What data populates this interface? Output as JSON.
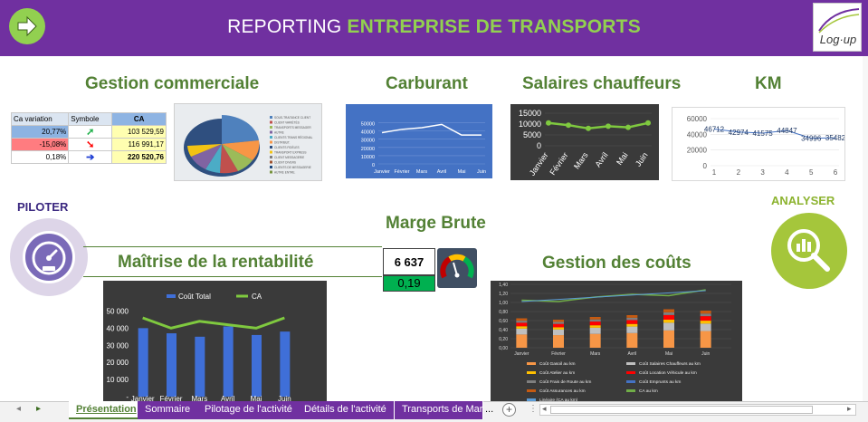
{
  "header": {
    "title_part1": "REPORTING ",
    "title_part2": "ENTREPRISE  DE TRANSPORTS",
    "logo_text": "Log·up",
    "icons": {
      "arrow": "right-arrow-icon"
    }
  },
  "sections": {
    "gestion_commerciale": "Gestion commerciale",
    "carburant": "Carburant",
    "salaires": "Salaires chauffeurs",
    "km": "KM",
    "piloter": "PILOTER",
    "analyser": "ANALYSER",
    "marge_brute": "Marge Brute",
    "maitrise": "Maîtrise de la rentabilité",
    "gestion_couts": "Gestion des coûts"
  },
  "ca_table": {
    "headers": [
      "Ca variation",
      "Symbole",
      "CA"
    ],
    "rows": [
      {
        "pct": "20,77%",
        "symbol": "➚",
        "value": "103 529,59"
      },
      {
        "pct": "-15,08%",
        "symbol": "➘",
        "value": "116 991,17"
      },
      {
        "pct": "0,18%",
        "symbol": "➔",
        "value": "220 520,76"
      }
    ]
  },
  "marge": {
    "value": "6 637",
    "ratio": "0,19"
  },
  "months": [
    "Janvier",
    "Février",
    "Mars",
    "Avril",
    "Mai",
    "Juin"
  ],
  "chart_data": [
    {
      "type": "line",
      "name": "carburant",
      "categories": [
        "Janvier",
        "Février",
        "Mars",
        "Avril",
        "Mai",
        "Juin"
      ],
      "values": [
        38000,
        42000,
        44000,
        48000,
        35000,
        35000
      ],
      "yticks": [
        "50000",
        "40000",
        "30000",
        "20000",
        "10000",
        "0"
      ],
      "ylim": [
        0,
        55000
      ]
    },
    {
      "type": "line",
      "name": "salaires",
      "categories": [
        "Janvier",
        "Février",
        "Mars",
        "Avril",
        "Mai",
        "Juin"
      ],
      "values": [
        10500,
        9500,
        8000,
        9000,
        8500,
        10500
      ],
      "yticks": [
        "15000",
        "10000",
        "5000",
        "0"
      ],
      "ylim": [
        0,
        15000
      ]
    },
    {
      "type": "line",
      "name": "km",
      "categories": [
        "1",
        "2",
        "3",
        "4",
        "5",
        "6"
      ],
      "values": [
        46712,
        42974,
        41575,
        44847,
        34996,
        35482
      ],
      "labels": [
        "46712",
        "42974",
        "41575",
        "44847",
        "34996",
        "35482"
      ],
      "yticks": [
        "60000",
        "40000",
        "20000",
        "0"
      ],
      "ylim": [
        0,
        60000
      ]
    },
    {
      "type": "bar",
      "name": "rentabilite",
      "categories": [
        "Janvier",
        "Février",
        "Mars",
        "Avril",
        "Mai",
        "Juin"
      ],
      "series": [
        {
          "name": "Coût Total",
          "values": [
            40000,
            37000,
            35000,
            41000,
            36000,
            38000
          ]
        },
        {
          "name": "CA",
          "values": [
            46000,
            40000,
            44000,
            42000,
            40000,
            46000
          ]
        }
      ],
      "yticks": [
        "50 000",
        "40 000",
        "30 000",
        "20 000",
        "10 000",
        "-"
      ],
      "ylim": [
        0,
        55000
      ]
    },
    {
      "type": "bar",
      "name": "gestion_couts",
      "categories": [
        "Janvier",
        "Février",
        "Mars",
        "Avril",
        "Mai",
        "Juin"
      ],
      "totals": [
        0.65,
        0.62,
        0.68,
        0.72,
        0.85,
        0.82
      ],
      "ca_line": [
        1.05,
        1.02,
        1.12,
        1.18,
        1.15,
        1.28
      ],
      "yticks": [
        "1,40",
        "1,20",
        "1,00",
        "0,80",
        "0,60",
        "0,40",
        "0,20",
        "0,00"
      ],
      "ylim": [
        0,
        1.4
      ],
      "legend": [
        "Coût Gasoil au km",
        "Coût Salaires Chauffeurs au km",
        "Coût Atelier au km",
        "Coût Location Véhicule au km",
        "Coût Frais de Route au km",
        "Coût Emprunts au km",
        "Coût Assurances au km",
        "CA au km",
        "Linéaire (CA au km)"
      ]
    }
  ],
  "tabs": [
    "Présentation",
    "Sommaire",
    "Pilotage de l'activité",
    "Détails de l'activité",
    "Transports de Marc"
  ],
  "tabbar": {
    "more": "...",
    "add": "+",
    "prev": "◂",
    "next": "▸"
  },
  "pie_legend": [
    "SOUS-TRAITANCE CLIENT",
    "CLIENT VARIÉTÉS",
    "TRANSPORTS MESSAGER",
    "AUTRE",
    "CLIENTS TRANS RÉGIONAL",
    "DISTRIBUT.",
    "CLIENTS FIDÈLES",
    "TRANSPORT EXPRESS",
    "CLIENT MESSAGERIE",
    "CLIENT DIVERS",
    "CLIENTS DE MESSAGERIE",
    "AUTRE ENTRE."
  ]
}
